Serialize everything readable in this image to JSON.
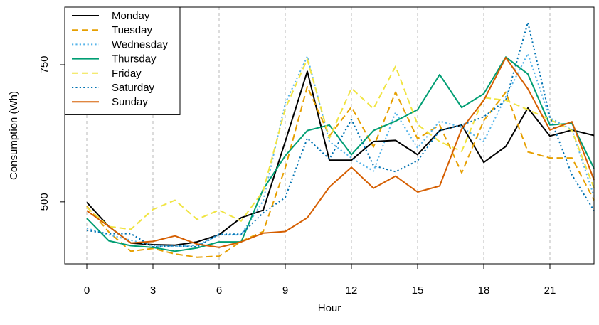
{
  "chart_data": {
    "type": "line",
    "xlabel": "Hour",
    "ylabel": "Consumption (Wh)",
    "x_ticks": [
      0,
      3,
      6,
      9,
      12,
      15,
      18,
      21
    ],
    "y_ticks": [
      500,
      750
    ],
    "xlim": [
      -1,
      23
    ],
    "ylim": [
      387,
      855
    ],
    "grid": "vertical dashed at x ticks",
    "legend_position": "top-left",
    "x": [
      0,
      1,
      2,
      3,
      4,
      5,
      6,
      7,
      8,
      9,
      10,
      11,
      12,
      13,
      14,
      15,
      16,
      17,
      18,
      19,
      20,
      21,
      22,
      23
    ],
    "series": [
      {
        "name": "Monday",
        "color": "#000000",
        "dash": "solid",
        "values": [
          499,
          455,
          425,
          422,
          421,
          427,
          440,
          471,
          485,
          610,
          738,
          576,
          576,
          610,
          612,
          586,
          630,
          640,
          572,
          601,
          671,
          620,
          631,
          621
        ]
      },
      {
        "name": "Tuesday",
        "color": "#E69F00",
        "dash": "long",
        "values": [
          492,
          445,
          410,
          415,
          405,
          399,
          401,
          428,
          446,
          562,
          710,
          620,
          673,
          600,
          700,
          615,
          640,
          553,
          648,
          700,
          591,
          580,
          580,
          503
        ]
      },
      {
        "name": "Wednesday",
        "color": "#56B4E9",
        "dash": "dotted",
        "values": [
          452,
          440,
          430,
          420,
          418,
          421,
          440,
          440,
          502,
          680,
          765,
          610,
          580,
          556,
          663,
          598,
          647,
          636,
          610,
          692,
          770,
          653,
          631,
          510
        ]
      },
      {
        "name": "Thursday",
        "color": "#009E73",
        "dash": "solid",
        "values": [
          470,
          429,
          420,
          417,
          410,
          416,
          427,
          427,
          523,
          584,
          630,
          640,
          586,
          630,
          647,
          668,
          732,
          672,
          697,
          764,
          733,
          640,
          643,
          561
        ]
      },
      {
        "name": "Friday",
        "color": "#F0E442",
        "dash": "long",
        "values": [
          490,
          455,
          450,
          486,
          503,
          468,
          485,
          465,
          520,
          670,
          760,
          616,
          707,
          670,
          747,
          641,
          610,
          592,
          690,
          685,
          668,
          650,
          630,
          525
        ]
      },
      {
        "name": "Saturday",
        "color": "#0072B2",
        "dash": "dotted",
        "values": [
          448,
          442,
          442,
          418,
          420,
          418,
          441,
          441,
          480,
          508,
          616,
          578,
          650,
          566,
          555,
          575,
          630,
          640,
          655,
          685,
          827,
          655,
          549,
          484
        ]
      },
      {
        "name": "Sunday",
        "color": "#D55E00",
        "dash": "solid",
        "values": [
          484,
          455,
          425,
          428,
          438,
          423,
          417,
          427,
          443,
          446,
          471,
          527,
          563,
          525,
          547,
          518,
          529,
          633,
          685,
          763,
          706,
          631,
          646,
          540
        ]
      }
    ]
  }
}
